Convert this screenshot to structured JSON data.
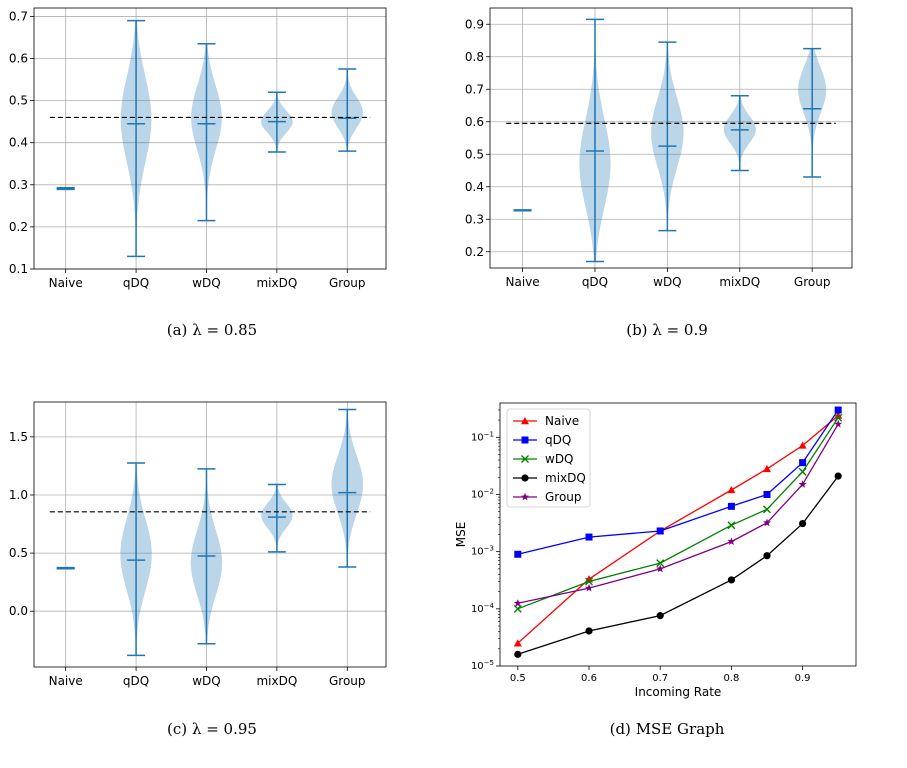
{
  "chart_data": [
    {
      "type": "violin",
      "caption_label": "(a)",
      "caption_text": "λ = 0.85",
      "categories": [
        "Naive",
        "qDQ",
        "wDQ",
        "mixDQ",
        "Group"
      ],
      "yticks": [
        "0.1",
        "0.2",
        "0.3",
        "0.4",
        "0.5",
        "0.6",
        "0.7"
      ],
      "ylim": [
        0.1,
        0.72
      ],
      "reference_line": 0.46,
      "grid": true,
      "violins": [
        {
          "min": 0.289,
          "max": 0.293,
          "median": 0.291,
          "mean": 0.291,
          "mode": 0.291
        },
        {
          "min": 0.13,
          "max": 0.69,
          "median": 0.445,
          "mean": 0.465,
          "mode": 0.47
        },
        {
          "min": 0.215,
          "max": 0.635,
          "median": 0.445,
          "mean": 0.46,
          "mode": 0.47
        },
        {
          "min": 0.378,
          "max": 0.52,
          "median": 0.45,
          "mean": 0.46,
          "mode": 0.45
        },
        {
          "min": 0.38,
          "max": 0.575,
          "median": 0.458,
          "mean": 0.465,
          "mode": 0.47
        }
      ]
    },
    {
      "type": "violin",
      "caption_label": "(b)",
      "caption_text": "λ = 0.9",
      "categories": [
        "Naive",
        "qDQ",
        "wDQ",
        "mixDQ",
        "Group"
      ],
      "yticks": [
        "0.2",
        "0.3",
        "0.4",
        "0.5",
        "0.6",
        "0.7",
        "0.8",
        "0.9"
      ],
      "ylim": [
        0.15,
        0.95
      ],
      "reference_line": 0.595,
      "grid": true,
      "violins": [
        {
          "min": 0.326,
          "max": 0.329,
          "median": 0.327,
          "mean": 0.327,
          "mode": 0.327
        },
        {
          "min": 0.17,
          "max": 0.915,
          "median": 0.51,
          "mean": 0.56,
          "mode": 0.45
        },
        {
          "min": 0.265,
          "max": 0.845,
          "median": 0.525,
          "mean": 0.56,
          "mode": 0.57
        },
        {
          "min": 0.45,
          "max": 0.68,
          "median": 0.575,
          "mean": 0.585,
          "mode": 0.58
        },
        {
          "min": 0.43,
          "max": 0.825,
          "median": 0.64,
          "mean": 0.64,
          "mode": 0.72
        }
      ]
    },
    {
      "type": "violin",
      "caption_label": "(c)",
      "caption_text": "λ = 0.95",
      "categories": [
        "Naive",
        "qDQ",
        "wDQ",
        "mixDQ",
        "Group"
      ],
      "yticks": [
        "0.0",
        "0.5",
        "1.0",
        "1.5"
      ],
      "ylim": [
        -0.48,
        1.8
      ],
      "reference_line": 0.855,
      "grid": true,
      "violins": [
        {
          "min": 0.365,
          "max": 0.375,
          "median": 0.37,
          "mean": 0.37,
          "mode": 0.37
        },
        {
          "min": -0.38,
          "max": 1.275,
          "median": 0.44,
          "mean": 0.45,
          "mode": 0.5
        },
        {
          "min": -0.28,
          "max": 1.225,
          "median": 0.475,
          "mean": 0.47,
          "mode": 0.4
        },
        {
          "min": 0.51,
          "max": 1.09,
          "median": 0.81,
          "mean": 0.82,
          "mode": 0.83
        },
        {
          "min": 0.38,
          "max": 1.735,
          "median": 1.02,
          "mean": 1.0,
          "mode": 1.1
        }
      ]
    },
    {
      "type": "line",
      "caption_label": "(d)",
      "caption_text": "MSE Graph",
      "xlabel": "Incoming Rate",
      "ylabel": "MSE",
      "yscale": "log",
      "xticks": [
        "0.5",
        "0.6",
        "0.7",
        "0.8",
        "0.9"
      ],
      "xlim": [
        0.475,
        0.975
      ],
      "ylim_exp": [
        -5,
        -0.4
      ],
      "yticks_exp": [
        -5,
        -4,
        -3,
        -2,
        -1
      ],
      "legend": "top-left",
      "x": [
        0.5,
        0.6,
        0.7,
        0.8,
        0.85,
        0.9,
        0.95
      ],
      "series": [
        {
          "name": "Naive",
          "color": "#ff0000",
          "marker": "triangle",
          "values": [
            2.5e-05,
            0.00033,
            0.0023,
            0.012,
            0.028,
            0.072,
            0.24
          ]
        },
        {
          "name": "qDQ",
          "color": "#0000ff",
          "marker": "square",
          "values": [
            0.0009,
            0.0018,
            0.0023,
            0.0062,
            0.01,
            0.036,
            0.3
          ]
        },
        {
          "name": "wDQ",
          "color": "#008000",
          "marker": "x",
          "values": [
            0.0001,
            0.0003,
            0.00063,
            0.0029,
            0.0055,
            0.025,
            0.22
          ]
        },
        {
          "name": "mixDQ",
          "color": "#000000",
          "marker": "circle",
          "values": [
            1.6e-05,
            4.1e-05,
            7.6e-05,
            0.00032,
            0.00085,
            0.0031,
            0.021
          ]
        },
        {
          "name": "Group",
          "color": "#800080",
          "marker": "star",
          "values": [
            0.000125,
            0.00023,
            0.0005,
            0.0015,
            0.0032,
            0.015,
            0.17
          ]
        }
      ]
    }
  ]
}
